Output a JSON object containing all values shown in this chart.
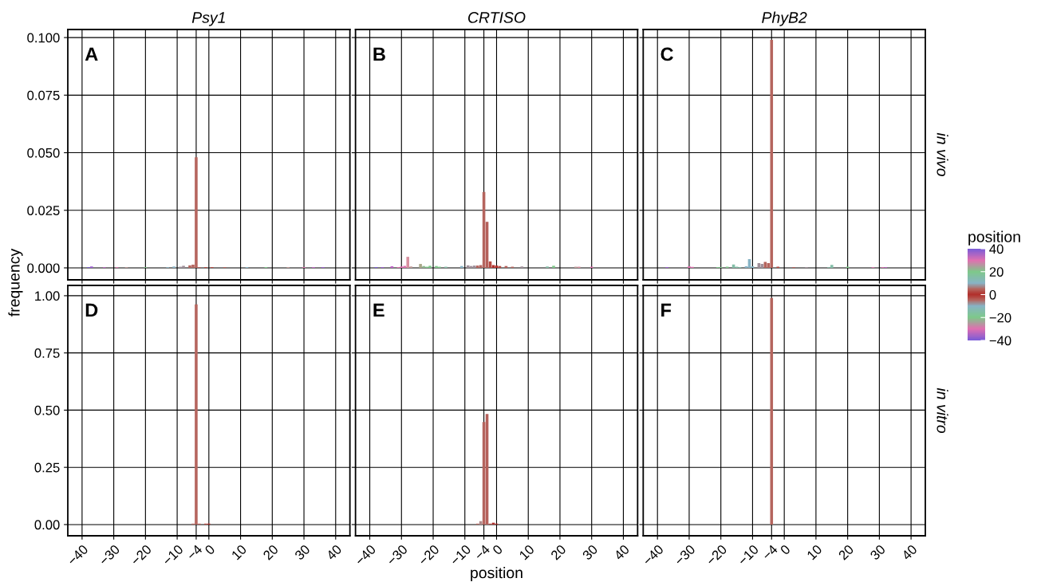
{
  "chart_data": [
    {
      "type": "bar",
      "title": "Psy1",
      "ylabel": "frequency",
      "annotations": [
        "A"
      ],
      "x": [
        -38,
        -37,
        -33,
        -29,
        -26,
        -20,
        -13,
        -11,
        -9,
        -8,
        -6,
        -5,
        -4,
        -3,
        -1,
        1,
        5,
        12,
        18,
        25,
        30,
        33,
        36
      ],
      "values": [
        0.0003,
        0.0006,
        0.0003,
        0.0003,
        0.0003,
        0.0003,
        0.0003,
        0.0006,
        0.0005,
        0.0009,
        0.0011,
        0.0014,
        0.048,
        0.0003,
        0.0003,
        0.0003,
        0.0003,
        0.0003,
        0.0003,
        0.0003,
        0.0003,
        0.0003,
        0.0003
      ],
      "colors": [
        "#7a5cd8",
        "#9a5cd0",
        "#c060c8",
        "#e070b0",
        "#c09a98",
        "#7ec98a",
        "#88b4c6",
        "#88b4c6",
        "#a0909a",
        "#a0909a",
        "#b5655e",
        "#b5655e",
        "#b5655e",
        "#b5605a",
        "#b54a42",
        "#b54a42",
        "#b5655e",
        "#88b4c6",
        "#7ec98a",
        "#c09a98",
        "#e070b0",
        "#c060c8",
        "#9a5cd0"
      ],
      "xlim": [
        -44.5,
        44.5
      ],
      "xticks": [
        -40,
        -30,
        -20,
        -10,
        -4,
        0,
        10,
        20,
        30,
        40
      ],
      "ylim": [
        -0.0052,
        0.1035
      ],
      "yticks": [
        {
          "value": 0,
          "label": "0.000"
        },
        {
          "value": 0.025,
          "label": "0.025"
        },
        {
          "value": 0.05,
          "label": "0.050"
        },
        {
          "value": 0.075,
          "label": "0.075"
        },
        {
          "value": 0.1,
          "label": "0.100"
        }
      ],
      "tick_labels": "y",
      "grid": true
    },
    {
      "type": "bar",
      "title": "CRTISO",
      "annotations": [
        "B"
      ],
      "x": [
        -38,
        -36,
        -33,
        -31,
        -30,
        -29,
        -28,
        -27,
        -24,
        -23,
        -22,
        -21,
        -19,
        -18,
        -16,
        -11,
        -9,
        -8,
        -7,
        -6,
        -5,
        -4,
        -3,
        -2,
        -1,
        0,
        1,
        3,
        5,
        8,
        16,
        18,
        25,
        26,
        30
      ],
      "values": [
        0.0003,
        0.0003,
        0.0007,
        0.0003,
        0.0006,
        0.0009,
        0.0048,
        0.0006,
        0.0017,
        0.0008,
        0.0005,
        0.0009,
        0.0008,
        0.0005,
        0.0005,
        0.0008,
        0.0011,
        0.0008,
        0.001,
        0.001,
        0.0012,
        0.033,
        0.02,
        0.0028,
        0.0012,
        0.001,
        0.0008,
        0.0008,
        0.0005,
        0.0006,
        0.0006,
        0.0009,
        0.0005,
        0.0005,
        0.0005
      ],
      "colors": [
        "#7a5cd8",
        "#9a5cd0",
        "#c060c8",
        "#e070b0",
        "#e070b0",
        "#e070b0",
        "#d890a0",
        "#c09a98",
        "#a8a888",
        "#90b890",
        "#7ec98a",
        "#7ec98a",
        "#7ec98a",
        "#7ec98a",
        "#84bfa8",
        "#88b4c6",
        "#a0909a",
        "#a0909a",
        "#a0909a",
        "#b5655e",
        "#b5655e",
        "#b5655e",
        "#b5605a",
        "#b54a42",
        "#b22e2a",
        "#b22e2a",
        "#b54a42",
        "#b5605a",
        "#b5655e",
        "#a0909a",
        "#84bfa8",
        "#7ec98a",
        "#c09a98",
        "#d890a0",
        "#e070b0"
      ],
      "xlim": [
        -44.5,
        44.5
      ],
      "xticks": [
        -40,
        -30,
        -20,
        -10,
        -4,
        0,
        10,
        20,
        30,
        40
      ],
      "ylim": [
        -0.0052,
        0.1035
      ],
      "yticks": [
        {
          "value": 0,
          "label": null
        },
        {
          "value": 0.025,
          "label": null
        },
        {
          "value": 0.05,
          "label": null
        },
        {
          "value": 0.075,
          "label": null
        },
        {
          "value": 0.1,
          "label": null
        }
      ],
      "tick_labels": false,
      "grid": true
    },
    {
      "type": "bar",
      "title": "PhyB2",
      "annotations": [
        "C",
        "in vivo"
      ],
      "x": [
        -37,
        -30,
        -29,
        -21,
        -20,
        -18,
        -16,
        -15,
        -14,
        -12,
        -11,
        -10,
        -8,
        -7,
        -6,
        -5,
        -4,
        -2,
        3,
        7,
        14,
        15,
        20,
        28,
        31,
        32
      ],
      "values": [
        0.0003,
        0.0007,
        0.0004,
        0.0003,
        0.0003,
        0.0005,
        0.0015,
        0.0005,
        0.0003,
        0.0007,
        0.0038,
        0.0007,
        0.0021,
        0.0017,
        0.0026,
        0.0021,
        0.099,
        0.0005,
        0.0003,
        0.0003,
        0.0003,
        0.0013,
        0.0005,
        0.0003,
        0.0003,
        0.0003
      ],
      "colors": [
        "#9a5cd0",
        "#e070b0",
        "#e070b0",
        "#7ec98a",
        "#7ec98a",
        "#7ec98a",
        "#84bfa8",
        "#84bfa8",
        "#84bfa8",
        "#88b4c6",
        "#88b4c6",
        "#88b4c6",
        "#a0909a",
        "#a0909a",
        "#b5655e",
        "#b5655e",
        "#b5655e",
        "#b54a42",
        "#b5605a",
        "#a0909a",
        "#84bfa8",
        "#84bfa8",
        "#7ec98a",
        "#e070b0",
        "#e070b0",
        "#c060c8"
      ],
      "xlim": [
        -44.5,
        44.5
      ],
      "xticks": [
        -40,
        -30,
        -20,
        -10,
        -4,
        0,
        10,
        20,
        30,
        40
      ],
      "ylim": [
        -0.0052,
        0.1035
      ],
      "yticks": [
        {
          "value": 0,
          "label": null
        },
        {
          "value": 0.025,
          "label": null
        },
        {
          "value": 0.05,
          "label": null
        },
        {
          "value": 0.075,
          "label": null
        },
        {
          "value": 0.1,
          "label": null
        }
      ],
      "tick_labels": false,
      "grid": true
    },
    {
      "type": "bar",
      "annotations": [
        "D"
      ],
      "x": [
        -5,
        -4,
        -3,
        -1,
        0
      ],
      "values": [
        0.004,
        0.962,
        0.004,
        0.004,
        0.004
      ],
      "colors": [
        "#b5655e",
        "#b5655e",
        "#b5605a",
        "#b54a42",
        "#b22e2a"
      ],
      "xlim": [
        -44.5,
        44.5
      ],
      "xticks": [
        -40,
        -30,
        -20,
        -10,
        -4,
        0,
        10,
        20,
        30,
        40
      ],
      "ylim": [
        -0.049,
        1.045
      ],
      "yticks": [
        {
          "value": 0,
          "label": "0.00"
        },
        {
          "value": 0.25,
          "label": "0.25"
        },
        {
          "value": 0.5,
          "label": "0.50"
        },
        {
          "value": 0.75,
          "label": "0.75"
        },
        {
          "value": 1,
          "label": "1.00"
        }
      ],
      "grid": true
    },
    {
      "type": "bar",
      "xlabel": "position",
      "annotations": [
        "E"
      ],
      "x": [
        -6,
        -5,
        -4,
        -3,
        -2,
        -1,
        0
      ],
      "values": [
        0.004,
        0.015,
        0.448,
        0.483,
        0.004,
        0.008,
        0.004
      ],
      "colors": [
        "#b5655e",
        "#b08a8a",
        "#b5655e",
        "#b5605a",
        "#b54a42",
        "#b22e2a",
        "#b22e2a"
      ],
      "xlim": [
        -44.5,
        44.5
      ],
      "xticks": [
        -40,
        -30,
        -20,
        -10,
        -4,
        0,
        10,
        20,
        30,
        40
      ],
      "ylim": [
        -0.049,
        1.045
      ],
      "yticks": [
        {
          "value": 0,
          "label": null
        },
        {
          "value": 0.25,
          "label": null
        },
        {
          "value": 0.5,
          "label": null
        },
        {
          "value": 0.75,
          "label": null
        },
        {
          "value": 1,
          "label": null
        }
      ],
      "tick_labels": "x",
      "grid": true
    },
    {
      "type": "bar",
      "annotations": [
        "F",
        "in vitro"
      ],
      "x": [
        -4
      ],
      "values": [
        0.99
      ],
      "colors": [
        "#b5655e"
      ],
      "clabel": "position",
      "clim": [
        -40,
        40
      ],
      "cticks": [
        -40,
        -20,
        0,
        20,
        40
      ],
      "xlim": [
        -44.5,
        44.5
      ],
      "xticks": [
        -40,
        -30,
        -20,
        -10,
        -4,
        0,
        10,
        20,
        30,
        40
      ],
      "ylim": [
        -0.049,
        1.045
      ],
      "yticks": [
        {
          "value": 0,
          "label": null
        },
        {
          "value": 0.25,
          "label": null
        },
        {
          "value": 0.5,
          "label": null
        },
        {
          "value": 0.75,
          "label": null
        },
        {
          "value": 1,
          "label": null
        }
      ],
      "tick_labels": "x",
      "grid": true
    }
  ]
}
